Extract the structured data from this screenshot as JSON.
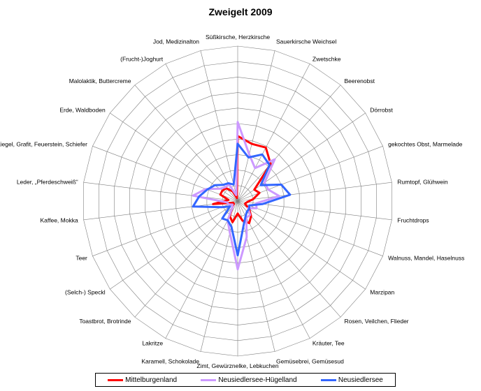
{
  "chart_data": {
    "type": "radar",
    "title": "Zweigelt 2009",
    "rmax": 10,
    "rings": 10,
    "grid": true,
    "legend_position": "bottom",
    "categories": [
      "Süßkirsche, Herzkirsche",
      "Sauerkirsche Weichsel",
      "Zwetschke",
      "Beerenobst",
      "Dörrobst",
      "gekochtes Obst, Marmelade",
      "Rumtopf, Glühwein",
      "Fruchtdrops",
      "Walnuss, Mandel, Haselnuss",
      "Marzipan",
      "Rosen, Veilchen, Flieder",
      "Kräuter, Tee",
      "Gemüsebrei, Gemüsesud",
      "Zimt, Gewürznelke, Lebkuchen",
      "Karamell, Schokolade",
      "Lakritze",
      "Toastbrot, Brotrinde",
      "(Selch-) Speckl",
      "Teer",
      "Kaffee, Mokka",
      "Leder, „Pferdeschweiß“",
      "Ziegel, Grafit, Feuerstein, Schiefer",
      "Erde, Waldboden",
      "Malolaktik, Buttercreme",
      "(Frucht-)Joghurt",
      "Jod, Medizinalton"
    ],
    "series": [
      {
        "name": "Mittelburgenland",
        "color": "#ff0000",
        "values": [
          4.2,
          3.8,
          3.9,
          3.2,
          1.3,
          1.5,
          1.0,
          0.6,
          0.5,
          0.9,
          1.3,
          1.6,
          1.3,
          0.8,
          1.4,
          1.1,
          0.5,
          0.3,
          0.3,
          1.6,
          0.6,
          1.2,
          1.2,
          1.1,
          0.7,
          0.2
        ]
      },
      {
        "name": "Neusiedlersee-Hügelland",
        "color": "#cc99ff",
        "values": [
          5.1,
          3.1,
          2.4,
          3.6,
          2.1,
          2.1,
          2.7,
          1.2,
          1.3,
          0.8,
          1.2,
          1.2,
          2.4,
          4.4,
          2.1,
          1.4,
          0.5,
          0.4,
          0.6,
          0.7,
          2.9,
          2.2,
          1.4,
          1.2,
          1.2,
          0.4
        ]
      },
      {
        "name": "Neusiedlersee",
        "color": "#3366ff",
        "values": [
          3.7,
          2.9,
          3.4,
          3.1,
          1.8,
          3.0,
          3.4,
          1.6,
          0.8,
          0.9,
          0.9,
          1.1,
          1.6,
          3.5,
          1.7,
          1.4,
          1.5,
          0.6,
          1.1,
          2.9,
          2.5,
          2.1,
          1.8,
          1.4,
          1.3,
          1.1
        ]
      }
    ]
  }
}
